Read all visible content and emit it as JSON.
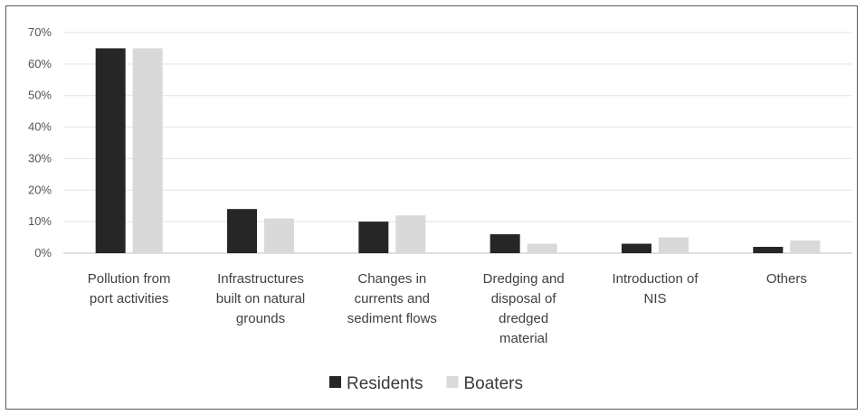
{
  "chart_data": {
    "type": "bar",
    "categories": [
      [
        "Pollution from",
        "port activities"
      ],
      [
        "Infrastructures",
        "built on natural",
        "grounds"
      ],
      [
        "Changes in",
        "currents and",
        "sediment flows"
      ],
      [
        "Dredging and",
        "disposal of",
        "dredged",
        "material"
      ],
      [
        "Introduction of",
        "NIS"
      ],
      [
        "Others"
      ]
    ],
    "series": [
      {
        "name": "Residents",
        "color": "#262626",
        "values": [
          65,
          14,
          10,
          6,
          3,
          2
        ]
      },
      {
        "name": "Boaters",
        "color": "#d9d9d9",
        "values": [
          65,
          11,
          12,
          3,
          5,
          4
        ]
      }
    ],
    "yticks": [
      "0%",
      "10%",
      "20%",
      "30%",
      "40%",
      "50%",
      "60%",
      "70%"
    ],
    "ylim": [
      0,
      70
    ],
    "grid": true,
    "legend_position": "bottom"
  }
}
